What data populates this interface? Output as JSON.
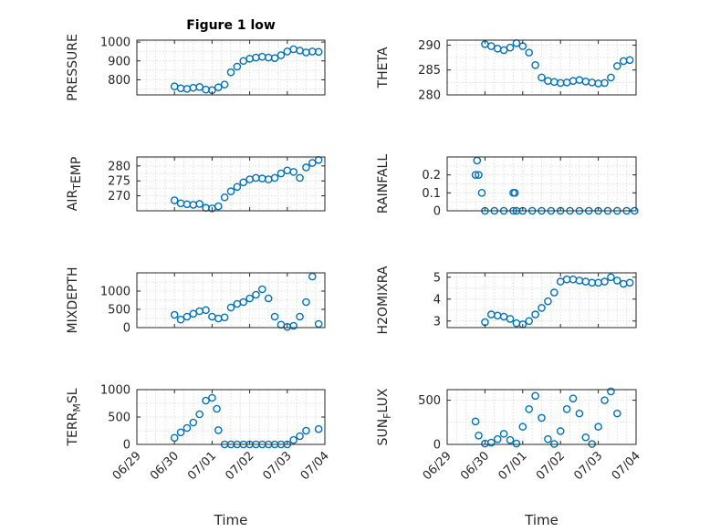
{
  "figure_title": "Figure 1 low",
  "x_axis_label": "Time",
  "x_ticks": [
    "06/29",
    "06/30",
    "07/01",
    "07/02",
    "07/03",
    "07/04"
  ],
  "marker_color": "#0072BD",
  "chart_data": [
    {
      "type": "scatter",
      "ylabel": "PRESSURE",
      "title": "Figure 1 low",
      "xlim": [
        "06/29",
        "07/04"
      ],
      "ylim": [
        720,
        1010
      ],
      "yticks": [
        800,
        900,
        1000
      ],
      "grid": true,
      "x": [
        "06/30 00:00",
        "06/30 04:00",
        "06/30 08:00",
        "06/30 12:00",
        "06/30 16:00",
        "06/30 20:00",
        "07/01 00:00",
        "07/01 04:00",
        "07/01 08:00",
        "07/01 12:00",
        "07/01 16:00",
        "07/01 20:00",
        "07/02 00:00",
        "07/02 04:00",
        "07/02 08:00",
        "07/02 12:00",
        "07/02 16:00",
        "07/02 20:00",
        "07/03 00:00",
        "07/03 04:00",
        "07/03 08:00",
        "07/03 12:00",
        "07/03 16:00",
        "07/03 20:00"
      ],
      "y": [
        765,
        755,
        752,
        758,
        762,
        748,
        745,
        760,
        775,
        840,
        870,
        900,
        912,
        918,
        922,
        918,
        915,
        930,
        950,
        962,
        955,
        945,
        950,
        948
      ]
    },
    {
      "type": "scatter",
      "ylabel": "THETA",
      "xlim": [
        "06/29",
        "07/04"
      ],
      "ylim": [
        280,
        291
      ],
      "yticks": [
        280,
        285,
        290
      ],
      "grid": true,
      "x": [
        "06/30 00:00",
        "06/30 04:00",
        "06/30 08:00",
        "06/30 12:00",
        "06/30 16:00",
        "06/30 20:00",
        "07/01 00:00",
        "07/01 04:00",
        "07/01 08:00",
        "07/01 12:00",
        "07/01 16:00",
        "07/01 20:00",
        "07/02 00:00",
        "07/02 04:00",
        "07/02 08:00",
        "07/02 12:00",
        "07/02 16:00",
        "07/02 20:00",
        "07/03 00:00",
        "07/03 04:00",
        "07/03 08:00",
        "07/03 12:00",
        "07/03 16:00",
        "07/03 20:00"
      ],
      "y": [
        290.2,
        289.8,
        289.3,
        289.0,
        289.5,
        290.4,
        289.8,
        288.5,
        286.0,
        283.5,
        282.8,
        282.6,
        282.4,
        282.5,
        282.8,
        283.0,
        282.7,
        282.5,
        282.3,
        282.4,
        283.5,
        285.8,
        286.8,
        287.0
      ]
    },
    {
      "type": "scatter",
      "ylabel": "AIR_TEMP",
      "xlim": [
        "06/29",
        "07/04"
      ],
      "ylim": [
        265,
        283
      ],
      "yticks": [
        270,
        275,
        280
      ],
      "grid": true,
      "x": [
        "06/30 00:00",
        "06/30 04:00",
        "06/30 08:00",
        "06/30 12:00",
        "06/30 16:00",
        "06/30 20:00",
        "07/01 00:00",
        "07/01 04:00",
        "07/01 08:00",
        "07/01 12:00",
        "07/01 16:00",
        "07/01 20:00",
        "07/02 00:00",
        "07/02 04:00",
        "07/02 08:00",
        "07/02 12:00",
        "07/02 16:00",
        "07/02 20:00",
        "07/03 00:00",
        "07/03 04:00",
        "07/03 08:00",
        "07/03 12:00",
        "07/03 16:00",
        "07/03 20:00"
      ],
      "y": [
        268.5,
        267.5,
        267.2,
        267.0,
        267.3,
        266.0,
        265.8,
        266.5,
        269.5,
        271.5,
        273.0,
        274.5,
        275.5,
        276.0,
        275.8,
        275.5,
        276.0,
        277.5,
        278.5,
        278.0,
        276.0,
        279.5,
        281.0,
        282.0
      ]
    },
    {
      "type": "scatter",
      "ylabel": "RAINFALL",
      "xlim": [
        "06/29",
        "07/04"
      ],
      "ylim": [
        0,
        0.3
      ],
      "yticks": [
        0,
        0.1,
        0.2
      ],
      "grid": true,
      "x": [
        "06/29 18:00",
        "06/29 19:00",
        "06/29 20:00",
        "06/29 22:00",
        "06/30 00:00",
        "06/30 06:00",
        "06/30 12:00",
        "06/30 18:00",
        "07/01 00:00",
        "07/01 06:00",
        "07/01 12:00",
        "07/01 18:00",
        "07/02 00:00",
        "07/02 06:00",
        "07/02 12:00",
        "07/02 18:00",
        "07/03 00:00",
        "07/03 06:00",
        "07/03 12:00",
        "07/03 18:00",
        "07/03 23:00",
        "06/30 18:00",
        "06/30 19:00",
        "06/30 20:00"
      ],
      "y": [
        0.2,
        0.28,
        0.2,
        0.1,
        0,
        0,
        0,
        0,
        0,
        0,
        0,
        0,
        0,
        0,
        0,
        0,
        0,
        0,
        0,
        0,
        0,
        0.1,
        0.1,
        0
      ]
    },
    {
      "type": "scatter",
      "ylabel": "MIXDEPTH",
      "xlim": [
        "06/29",
        "07/04"
      ],
      "ylim": [
        0,
        1500
      ],
      "yticks": [
        0,
        500,
        1000
      ],
      "grid": true,
      "x": [
        "06/30 00:00",
        "06/30 04:00",
        "06/30 08:00",
        "06/30 12:00",
        "06/30 16:00",
        "06/30 20:00",
        "07/01 00:00",
        "07/01 04:00",
        "07/01 08:00",
        "07/01 12:00",
        "07/01 16:00",
        "07/01 20:00",
        "07/02 00:00",
        "07/02 04:00",
        "07/02 08:00",
        "07/02 12:00",
        "07/02 16:00",
        "07/02 20:00",
        "07/03 00:00",
        "07/03 04:00",
        "07/03 08:00",
        "07/03 12:00",
        "07/03 16:00",
        "07/03 20:00"
      ],
      "y": [
        350,
        220,
        300,
        380,
        450,
        480,
        300,
        250,
        280,
        550,
        650,
        700,
        800,
        900,
        1050,
        800,
        300,
        80,
        20,
        50,
        300,
        700,
        1400,
        100
      ]
    },
    {
      "type": "scatter",
      "ylabel": "H2OMIXRA",
      "xlim": [
        "06/29",
        "07/04"
      ],
      "ylim": [
        2.7,
        5.2
      ],
      "yticks": [
        3,
        4,
        5
      ],
      "grid": true,
      "x": [
        "06/30 00:00",
        "06/30 04:00",
        "06/30 08:00",
        "06/30 12:00",
        "06/30 16:00",
        "06/30 20:00",
        "07/01 00:00",
        "07/01 04:00",
        "07/01 08:00",
        "07/01 12:00",
        "07/01 16:00",
        "07/01 20:00",
        "07/02 00:00",
        "07/02 04:00",
        "07/02 08:00",
        "07/02 12:00",
        "07/02 16:00",
        "07/02 20:00",
        "07/03 00:00",
        "07/03 04:00",
        "07/03 08:00",
        "07/03 12:00",
        "07/03 16:00",
        "07/03 20:00"
      ],
      "y": [
        2.95,
        3.3,
        3.25,
        3.2,
        3.1,
        2.9,
        2.85,
        3.0,
        3.3,
        3.6,
        3.9,
        4.3,
        4.8,
        4.9,
        4.9,
        4.85,
        4.8,
        4.75,
        4.75,
        4.8,
        5.0,
        4.85,
        4.7,
        4.75
      ]
    },
    {
      "type": "scatter",
      "ylabel": "TERR_MSL",
      "xlim": [
        "06/29",
        "07/04"
      ],
      "ylim": [
        0,
        1000
      ],
      "yticks": [
        0,
        500,
        1000
      ],
      "grid": true,
      "x": [
        "06/30 00:00",
        "06/30 04:00",
        "06/30 08:00",
        "06/30 12:00",
        "06/30 16:00",
        "06/30 20:00",
        "07/01 00:00",
        "07/01 03:00",
        "07/01 04:00",
        "07/01 08:00",
        "07/01 12:00",
        "07/01 16:00",
        "07/01 20:00",
        "07/02 00:00",
        "07/02 04:00",
        "07/02 08:00",
        "07/02 12:00",
        "07/02 16:00",
        "07/02 20:00",
        "07/03 00:00",
        "07/03 04:00",
        "07/03 08:00",
        "07/03 12:00",
        "07/03 20:00"
      ],
      "y": [
        120,
        220,
        300,
        400,
        550,
        800,
        850,
        650,
        260,
        0,
        0,
        0,
        0,
        0,
        0,
        0,
        0,
        0,
        0,
        0,
        80,
        150,
        250,
        280
      ]
    },
    {
      "type": "scatter",
      "ylabel": "SUN_FLUX",
      "xlim": [
        "06/29",
        "07/04"
      ],
      "ylim": [
        0,
        620
      ],
      "yticks": [
        0,
        500
      ],
      "grid": true,
      "x": [
        "06/29 18:00",
        "06/29 20:00",
        "06/30 00:00",
        "06/30 04:00",
        "06/30 08:00",
        "06/30 12:00",
        "06/30 16:00",
        "06/30 20:00",
        "07/01 00:00",
        "07/01 04:00",
        "07/01 08:00",
        "07/01 12:00",
        "07/01 16:00",
        "07/01 20:00",
        "07/02 00:00",
        "07/02 04:00",
        "07/02 08:00",
        "07/02 12:00",
        "07/02 16:00",
        "07/02 20:00",
        "07/03 00:00",
        "07/03 04:00",
        "07/03 08:00",
        "07/03 12:00"
      ],
      "y": [
        260,
        100,
        10,
        20,
        60,
        120,
        50,
        10,
        200,
        400,
        550,
        300,
        60,
        5,
        150,
        400,
        520,
        350,
        80,
        5,
        200,
        500,
        600,
        350
      ]
    }
  ]
}
